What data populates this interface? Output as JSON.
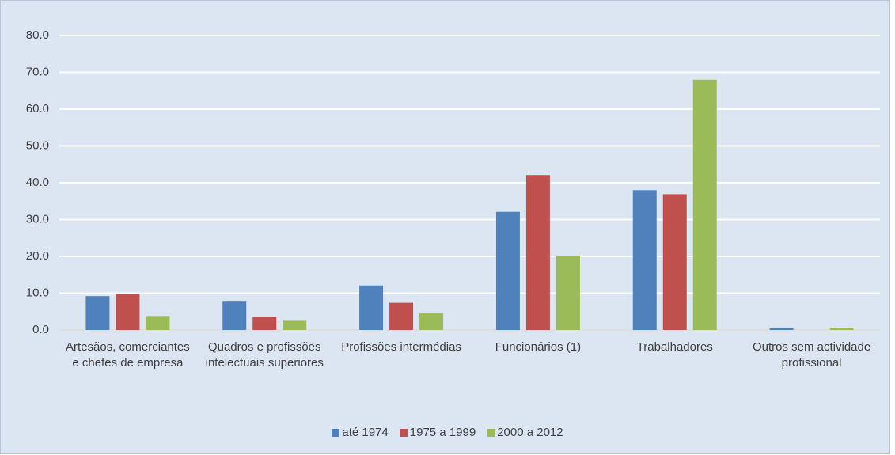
{
  "chart_data": {
    "type": "bar",
    "categories": [
      "Artesãos, comerciantes e chefes de empresa",
      "Quadros e profissões intelectuais superiores",
      "Profissões intermédias",
      "Funcionários (1)",
      "Trabalhadores",
      "Outros sem actividade profissional"
    ],
    "series": [
      {
        "name": "até 1974",
        "color": "#4f81bd",
        "values": [
          9.2,
          7.7,
          12.1,
          32.1,
          38.0,
          0.5
        ]
      },
      {
        "name": "1975 a 1999",
        "color": "#c0504d",
        "values": [
          9.7,
          3.6,
          7.4,
          42.1,
          36.9,
          0
        ]
      },
      {
        "name": "2000 a 2012",
        "color": "#9bbb59",
        "values": [
          3.8,
          2.5,
          4.5,
          20.2,
          68.0,
          0.6
        ]
      }
    ],
    "ylim": [
      0,
      80
    ],
    "yticks": [
      {
        "value": 0,
        "label": "0.0"
      },
      {
        "value": 10,
        "label": "10.0"
      },
      {
        "value": 20,
        "label": "20.0"
      },
      {
        "value": 30,
        "label": "30.0"
      },
      {
        "value": 40,
        "label": "40.0"
      },
      {
        "value": 50,
        "label": "50.0"
      },
      {
        "value": 60,
        "label": "60.0"
      },
      {
        "value": 70,
        "label": "70.0"
      },
      {
        "value": 80,
        "label": "80.0"
      }
    ],
    "grid": true,
    "legend": "bottom"
  }
}
